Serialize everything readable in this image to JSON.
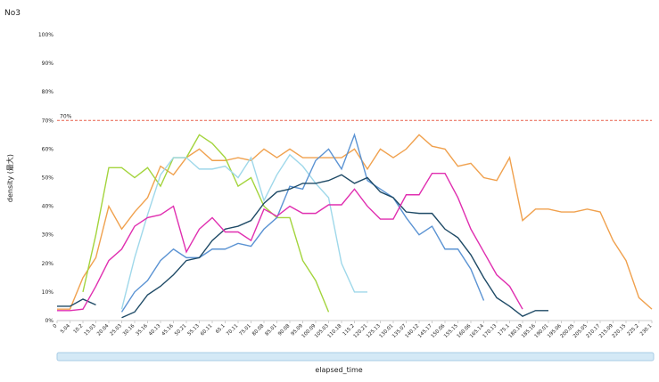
{
  "chart_data": {
    "type": "line",
    "title": "No3",
    "y_label": "density (最大)",
    "x_label": "elapsed_time",
    "categories": [
      "0",
      "5.04",
      "10.2",
      "15.03",
      "20.04",
      "25.03",
      "30.16",
      "35.16",
      "40.13",
      "45.16",
      "50.21",
      "55.13",
      "60.11",
      "65.1",
      "70.11",
      "75.01",
      "80.08",
      "85.01",
      "90.08",
      "95.09",
      "100.09",
      "105.03",
      "110.18",
      "115.2",
      "120.21",
      "125.13",
      "130.01",
      "135.07",
      "140.12",
      "145.17",
      "150.06",
      "155.15",
      "160.06",
      "165.14",
      "170.13",
      "175.1",
      "180.19",
      "185.16",
      "190.01",
      "195.06",
      "200.05",
      "205.05",
      "210.17",
      "215.09",
      "220.15",
      "225.2",
      "230.1"
    ],
    "ylim": [
      0,
      100
    ],
    "yticks": [
      {
        "value": 0,
        "label": "0%"
      },
      {
        "value": 10,
        "label": "10%"
      },
      {
        "value": 20,
        "label": "20%"
      },
      {
        "value": 30,
        "label": "30%"
      },
      {
        "value": 40,
        "label": "40%"
      },
      {
        "value": 50,
        "label": "50%"
      },
      {
        "value": 60,
        "label": "60%"
      },
      {
        "value": 70,
        "label": "70%"
      },
      {
        "value": 80,
        "label": "80%"
      },
      {
        "value": 90,
        "label": "90%"
      },
      {
        "value": 100,
        "label": "100%"
      }
    ],
    "threshold": {
      "value": 70,
      "label": "70%",
      "color": "#e8604c"
    },
    "series": [
      {
        "color": "#f0a14e",
        "values": [
          4,
          4,
          15,
          22,
          40,
          32,
          38,
          43,
          54,
          51,
          57,
          60,
          56,
          56,
          57,
          56,
          60,
          57,
          60,
          57,
          57,
          57,
          57,
          60,
          53,
          60,
          57,
          60,
          65,
          61,
          60,
          54,
          55,
          50,
          49,
          57,
          35,
          39,
          39,
          38,
          38,
          39,
          38,
          28,
          21,
          8,
          4
        ]
      },
      {
        "color": "#a3d43c",
        "values": [
          null,
          null,
          10,
          30,
          53.5,
          53.5,
          50,
          53.5,
          47,
          57,
          57,
          65,
          62,
          57,
          47,
          50,
          40,
          36,
          36,
          21,
          14,
          3,
          null,
          null,
          null,
          null,
          null,
          null,
          null,
          null,
          null,
          null,
          null,
          null,
          null,
          null,
          null,
          null,
          null,
          null,
          null,
          null,
          null,
          null,
          null,
          null,
          null
        ]
      },
      {
        "color": "#9fd8ea",
        "values": [
          null,
          null,
          null,
          null,
          null,
          4,
          22,
          37,
          51,
          57,
          57,
          53,
          53,
          54,
          50,
          57,
          42,
          51,
          58,
          54,
          48,
          43,
          20,
          10,
          10,
          null,
          null,
          null,
          null,
          null,
          null,
          null,
          null,
          null,
          null,
          null,
          null,
          null,
          null,
          null,
          null,
          null,
          null,
          null,
          null,
          null,
          null
        ]
      },
      {
        "color": "#5b93d3",
        "values": [
          null,
          null,
          null,
          null,
          null,
          3,
          10,
          14,
          21,
          25,
          22,
          22,
          25,
          25,
          27,
          26,
          32,
          36,
          47,
          46,
          56,
          60,
          53,
          65,
          49,
          46,
          43,
          36,
          30,
          33,
          25,
          25,
          18,
          7,
          null,
          null,
          null,
          null,
          null,
          null,
          null,
          null,
          null,
          null,
          null,
          null,
          null
        ]
      },
      {
        "color": "#1e4a66",
        "values": [
          5,
          5,
          7.5,
          5.5,
          null,
          1,
          3,
          9,
          12,
          16,
          21,
          22,
          28,
          32,
          33,
          35,
          41,
          45,
          46,
          48,
          48,
          49,
          51,
          48,
          50,
          45,
          43,
          38,
          37.5,
          37.5,
          32,
          29,
          23,
          15,
          8,
          5,
          1.5,
          3.5,
          3.5,
          null,
          null,
          null,
          null,
          null,
          null,
          null,
          null
        ]
      },
      {
        "color": "#e02fb0",
        "values": [
          3.5,
          3.5,
          4,
          12,
          21,
          25,
          33,
          36,
          37,
          40,
          24,
          32,
          36,
          31,
          31,
          28,
          39,
          36.5,
          40,
          37.5,
          37.5,
          40.5,
          40.5,
          46,
          40,
          35.5,
          35.5,
          44,
          44,
          51.5,
          51.5,
          43,
          32,
          24,
          16,
          12,
          4,
          null,
          null,
          null,
          null,
          null,
          null,
          null,
          null,
          null,
          null
        ]
      }
    ]
  }
}
